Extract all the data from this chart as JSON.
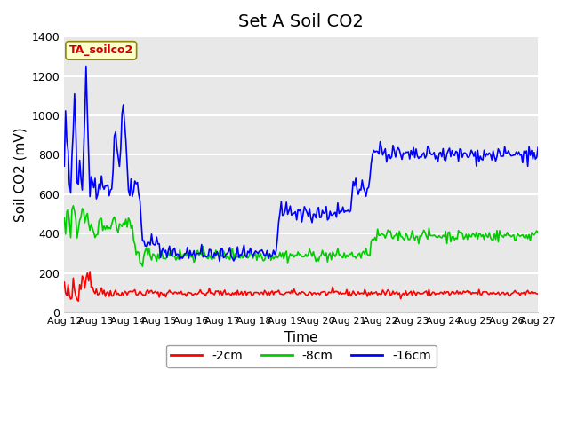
{
  "title": "Set A Soil CO2",
  "ylabel": "Soil CO2 (mV)",
  "xlabel": "Time",
  "tag_label": "TA_soilco2",
  "ylim": [
    0,
    1400
  ],
  "xlim": [
    0,
    360
  ],
  "x_tick_labels": [
    "Aug 12",
    "Aug 13",
    "Aug 14",
    "Aug 15",
    "Aug 16",
    "Aug 17",
    "Aug 18",
    "Aug 19",
    "Aug 20",
    "Aug 21",
    "Aug 22",
    "Aug 23",
    "Aug 24",
    "Aug 25",
    "Aug 26",
    "Aug 27"
  ],
  "x_tick_positions": [
    0,
    24,
    48,
    72,
    96,
    120,
    144,
    168,
    192,
    216,
    240,
    264,
    288,
    312,
    336,
    360
  ],
  "bg_color": "#e8e8e8",
  "plot_bg": "#e8e8e8",
  "line_red": [
    150,
    100,
    80,
    130,
    90,
    70,
    60,
    170,
    120,
    80,
    70,
    60,
    140,
    130,
    200,
    180,
    130,
    170,
    210,
    170,
    200,
    130,
    130,
    120,
    100,
    120,
    100,
    90,
    110,
    130,
    100,
    100,
    80,
    110,
    100,
    90,
    110,
    100,
    95,
    100,
    110,
    90,
    100,
    90,
    95,
    110,
    90,
    100,
    100,
    105,
    100,
    110,
    115,
    100,
    100,
    110,
    100,
    90,
    95,
    100,
    105,
    90,
    100,
    95,
    100,
    105,
    100,
    100,
    110,
    105,
    100,
    95,
    100,
    90,
    100,
    95,
    100,
    90,
    95,
    95,
    100,
    100,
    100,
    105,
    110,
    100,
    95,
    100,
    100,
    100,
    95,
    100,
    100,
    95,
    100,
    95,
    95,
    100,
    100,
    100,
    100,
    95,
    100,
    100,
    95,
    100,
    100,
    100,
    95,
    95,
    100,
    100,
    100,
    105,
    100,
    100,
    95,
    100,
    100,
    100,
    105,
    100,
    95,
    100,
    100,
    95,
    100,
    100,
    100,
    95,
    100,
    100,
    100,
    100,
    95,
    100,
    100,
    95,
    100,
    100,
    100,
    95,
    100,
    100,
    100,
    100,
    95,
    100,
    95,
    100,
    100,
    100,
    95,
    100,
    100,
    100,
    95,
    100,
    100,
    100,
    100,
    95,
    100,
    100,
    95,
    100,
    100,
    100,
    95,
    100,
    100,
    100,
    95,
    100,
    100,
    100,
    95,
    100,
    100,
    100,
    95,
    100,
    100,
    100,
    95,
    100,
    100,
    100,
    100,
    95,
    100,
    95,
    100,
    100,
    100,
    95,
    100,
    100,
    95,
    100,
    100,
    100,
    100,
    95,
    100,
    100,
    100,
    100,
    95,
    100,
    100,
    95,
    100,
    100,
    100,
    95,
    100,
    100,
    100,
    100,
    95,
    100,
    100,
    100,
    95,
    100,
    100,
    95,
    100,
    100,
    100,
    100,
    95,
    100,
    100,
    100,
    95,
    100,
    100,
    95,
    100,
    100,
    100,
    95,
    100,
    100,
    100,
    95,
    100,
    100,
    100,
    100,
    95,
    100,
    100,
    100,
    95,
    100,
    100,
    95,
    100,
    100,
    100,
    95,
    100,
    100,
    100,
    95,
    100,
    100,
    100,
    95,
    100,
    100,
    100,
    95,
    100,
    100,
    100,
    95,
    100,
    100,
    100,
    95,
    100,
    100,
    100,
    95,
    100,
    100,
    95,
    100,
    100,
    100,
    95,
    100,
    100,
    100,
    95,
    100,
    100,
    95,
    100,
    100,
    100,
    95,
    100,
    100,
    100,
    100,
    95,
    100,
    100,
    95,
    100,
    100,
    100,
    100,
    95,
    100,
    100,
    100,
    95,
    100,
    100,
    100,
    100,
    95,
    100,
    100,
    100,
    95,
    100,
    100,
    100,
    95,
    100,
    100,
    100,
    100,
    95,
    100,
    100,
    100,
    95,
    100,
    100,
    100,
    95,
    100,
    100,
    100,
    100,
    95,
    100,
    100,
    95,
    100,
    100,
    100,
    95,
    100,
    100,
    100,
    95,
    100,
    100,
    100,
    100,
    95,
    100
  ],
  "line_green": [
    480,
    390,
    490,
    510,
    430,
    390,
    510,
    540,
    480,
    490,
    390,
    430,
    500,
    490,
    540,
    520,
    450,
    460,
    490,
    460,
    430,
    440,
    450,
    380,
    360,
    400,
    420,
    440,
    480,
    460,
    440,
    450,
    420,
    440,
    430,
    420,
    440,
    450,
    470,
    480,
    450,
    440,
    430,
    430,
    440,
    450,
    430,
    440,
    460,
    430,
    450,
    440,
    430,
    440,
    360,
    330,
    310,
    300,
    290,
    280,
    270,
    260,
    290,
    300,
    310,
    290,
    300,
    310,
    290,
    300,
    290,
    280,
    290,
    300,
    290,
    300,
    310,
    290,
    280,
    290,
    280,
    290,
    300,
    310,
    290,
    300,
    290,
    280,
    290,
    290,
    290,
    290,
    290,
    290,
    300,
    290,
    290,
    290,
    300,
    290,
    290,
    290,
    290,
    290,
    290,
    290,
    300,
    290,
    290,
    290,
    290,
    290,
    300,
    290,
    290,
    290,
    290,
    290,
    290,
    290,
    290,
    290,
    290,
    300,
    290,
    290,
    290,
    290,
    290,
    290,
    290,
    300,
    290,
    290,
    290,
    290,
    290,
    290,
    290,
    290,
    290,
    290,
    290,
    290,
    290,
    300,
    290,
    290,
    290,
    290,
    290,
    290,
    290,
    290,
    290,
    290,
    290,
    290,
    290,
    290,
    290,
    290,
    290,
    290,
    290,
    290,
    290,
    290,
    290,
    290,
    290,
    290,
    290,
    290,
    290,
    290,
    290,
    290,
    290,
    290,
    290,
    290,
    290,
    290,
    290,
    290,
    290,
    290,
    290,
    290,
    290,
    290,
    290,
    290,
    290,
    290,
    290,
    290,
    290,
    290,
    290,
    290,
    290,
    290,
    290,
    290,
    290,
    290,
    290,
    290,
    290,
    290,
    290,
    290,
    290,
    290,
    290,
    290,
    290,
    290,
    290,
    290,
    290,
    290,
    290,
    290,
    290,
    290,
    290,
    290,
    290,
    290,
    290,
    290,
    290,
    290,
    300,
    310,
    310,
    320,
    350,
    370,
    370,
    380,
    380,
    390,
    390,
    390,
    390,
    390,
    390,
    390,
    390,
    390,
    390,
    390,
    390,
    390,
    390,
    390,
    390,
    390,
    390,
    390,
    390,
    390,
    390,
    390,
    390,
    390,
    390,
    390,
    390,
    390,
    390,
    390,
    390,
    390,
    390,
    390,
    390,
    390,
    390,
    390,
    390,
    390,
    390,
    390,
    390,
    390,
    390,
    390,
    390,
    390,
    390,
    390,
    390,
    390,
    390,
    390,
    390,
    390,
    390,
    390,
    390,
    390,
    390,
    390,
    390,
    390,
    390,
    390,
    390,
    390,
    390,
    390,
    390,
    390,
    390,
    390,
    390,
    390,
    390,
    390,
    390,
    390,
    390,
    390,
    390,
    390,
    390,
    390,
    390,
    390,
    390,
    390,
    390,
    390,
    390,
    390,
    390,
    390,
    390,
    390,
    390,
    390,
    390,
    390,
    390,
    390,
    390,
    390,
    390,
    390,
    390,
    390,
    390,
    390,
    390,
    390,
    390,
    390,
    390,
    390,
    390,
    390,
    390,
    390,
    390,
    390,
    390
  ],
  "line_blue": [
    780,
    1050,
    880,
    820,
    640,
    620,
    800,
    940,
    1130,
    950,
    660,
    680,
    800,
    650,
    640,
    760,
    1010,
    1270,
    1000,
    760,
    580,
    700,
    600,
    640,
    660,
    580,
    600,
    620,
    640,
    660,
    620,
    640,
    630,
    620,
    640,
    620,
    640,
    630,
    740,
    920,
    910,
    850,
    760,
    720,
    850,
    1030,
    1040,
    920,
    860,
    750,
    560,
    600,
    700,
    580,
    660,
    640,
    660,
    640,
    580,
    560,
    380,
    370,
    360,
    340,
    350,
    370,
    340,
    360,
    380,
    360,
    340,
    360,
    350,
    340,
    320,
    300,
    310,
    310,
    300,
    290,
    290,
    280,
    300,
    300,
    290,
    290,
    300,
    300,
    310,
    290,
    300,
    300,
    290,
    310,
    290,
    300,
    300,
    290,
    300,
    290,
    300,
    300,
    290,
    300,
    290,
    290,
    300,
    290,
    300,
    300,
    290,
    300,
    300,
    290,
    290,
    300,
    290,
    300,
    300,
    290,
    290,
    290,
    290,
    290,
    290,
    290,
    290,
    300,
    290,
    290,
    290,
    290,
    290,
    290,
    300,
    290,
    290,
    290,
    290,
    290,
    300,
    290,
    290,
    290,
    290,
    290,
    290,
    290,
    290,
    290,
    290,
    290,
    290,
    290,
    290,
    290,
    290,
    290,
    290,
    290,
    290,
    290,
    290,
    290,
    300,
    400,
    440,
    490,
    520,
    500,
    490,
    510,
    530,
    500,
    510,
    530,
    490,
    510,
    500,
    490,
    490,
    520,
    530,
    500,
    490,
    510,
    530,
    490,
    510,
    500,
    490,
    510,
    500,
    490,
    510,
    500,
    510,
    530,
    490,
    510,
    500,
    490,
    510,
    500,
    490,
    510,
    530,
    490,
    490,
    510,
    500,
    510,
    530,
    500,
    490,
    510,
    530,
    490,
    510,
    500,
    490,
    510,
    500,
    620,
    640,
    660,
    640,
    620,
    630,
    620,
    640,
    660,
    640,
    620,
    630,
    640,
    700,
    720,
    750,
    800,
    820,
    840,
    810,
    820,
    830,
    840,
    810,
    800,
    820,
    830,
    790,
    810,
    820,
    790,
    800,
    820,
    800,
    800,
    820,
    800,
    810,
    790,
    790,
    800,
    790,
    800,
    800,
    790,
    790,
    800,
    790,
    800,
    800,
    790,
    790,
    800,
    800,
    790,
    800,
    800,
    790,
    800,
    800,
    800,
    800,
    800,
    800,
    800,
    800,
    800,
    800,
    800,
    800,
    800,
    800,
    800,
    800,
    800,
    800,
    800,
    800,
    800,
    800,
    800,
    800,
    800,
    800,
    800,
    800,
    800,
    800,
    800,
    800,
    800,
    800,
    800,
    800,
    800,
    800,
    800,
    800,
    800,
    800,
    800,
    800,
    800,
    800,
    800,
    800,
    800,
    800,
    800,
    800,
    800,
    800,
    800,
    800,
    800,
    800,
    800,
    800,
    800,
    800,
    800,
    800,
    800,
    800,
    800,
    800,
    800,
    800,
    800,
    800,
    800,
    800,
    800,
    800,
    800,
    800,
    800,
    800,
    800,
    800,
    800,
    800,
    800,
    800,
    800
  ],
  "legend_entries": [
    "-2cm",
    "-8cm",
    "-16cm"
  ],
  "legend_colors": [
    "#ff0000",
    "#00cc00",
    "#0000ff"
  ],
  "title_fontsize": 14,
  "axis_label_fontsize": 11
}
